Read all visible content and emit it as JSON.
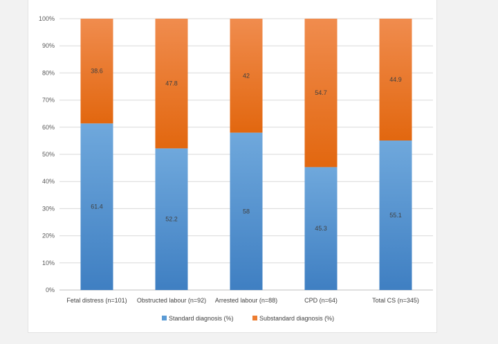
{
  "chart_data": {
    "type": "bar",
    "stacked": true,
    "percent": true,
    "categories": [
      "Fetal distress (n=101)",
      "Obstructed labour (n=92)",
      "Arrested labour (n=88)",
      "CPD (n=64)",
      "Total CS (n=345)"
    ],
    "series": [
      {
        "name": "Standard diagnosis (%)",
        "values": [
          61.4,
          52.2,
          58,
          45.3,
          55.1
        ],
        "labels": [
          "61.4",
          "52.2",
          "58",
          "45.3",
          "55.1"
        ],
        "color": "#5b9bd5"
      },
      {
        "name": "Substandard diagnosis (%)",
        "values": [
          38.6,
          47.8,
          42,
          54.7,
          44.9
        ],
        "labels": [
          "38.6",
          "47.8",
          "42",
          "54.7",
          "44.9"
        ],
        "color": "#ed7d31"
      }
    ],
    "y_ticks": [
      "0%",
      "10%",
      "20%",
      "30%",
      "40%",
      "50%",
      "60%",
      "70%",
      "80%",
      "90%",
      "100%"
    ],
    "ylim": [
      0,
      100
    ],
    "grid": true,
    "legend_position": "bottom",
    "title": "",
    "xlabel": "",
    "ylabel": ""
  }
}
